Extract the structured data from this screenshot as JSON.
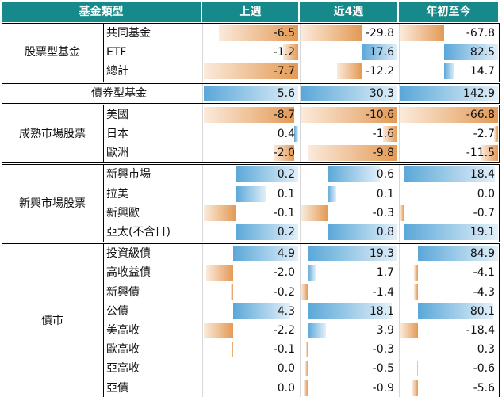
{
  "table": {
    "header": [
      "基金類型",
      "上週",
      "近4週",
      "年初至今"
    ],
    "groups": [
      {
        "label": "股票型基金",
        "rows": [
          {
            "label": "共同基金",
            "values": [
              "-6.5",
              "-29.8",
              "-67.8"
            ]
          },
          {
            "label": "ETF",
            "values": [
              "-1.2",
              "17.6",
              "82.5"
            ]
          },
          {
            "label": "總計",
            "values": [
              "-7.7",
              "-12.2",
              "14.7"
            ]
          }
        ]
      },
      {
        "label": "債券型基金",
        "rows": [
          {
            "values": [
              "5.6",
              "30.3",
              "142.9"
            ]
          }
        ]
      },
      {
        "label": "成熟市場股票",
        "rows": [
          {
            "label": "美國",
            "values": [
              "-8.7",
              "-10.6",
              "-66.8"
            ]
          },
          {
            "label": "日本",
            "values": [
              "0.4",
              "-1.6",
              "-2.7"
            ]
          },
          {
            "label": "歐洲",
            "values": [
              "-2.0",
              "-9.8",
              "-11.5"
            ]
          }
        ]
      },
      {
        "label": "新興市場股票",
        "rows": [
          {
            "label": "新興市場",
            "values": [
              "0.2",
              "0.6",
              "18.4"
            ]
          },
          {
            "label": "拉美",
            "values": [
              "0.1",
              "0.1",
              "0.0"
            ]
          },
          {
            "label": "新興歐",
            "values": [
              "-0.1",
              "-0.3",
              "-0.7"
            ]
          },
          {
            "label": "亞太(不含日)",
            "values": [
              "0.2",
              "0.8",
              "19.1"
            ]
          }
        ]
      },
      {
        "label": "債市",
        "rows": [
          {
            "label": "投資級債",
            "values": [
              "4.9",
              "19.3",
              "84.9"
            ]
          },
          {
            "label": "高收益債",
            "values": [
              "-2.0",
              "1.7",
              "-4.1"
            ]
          },
          {
            "label": "新興債",
            "values": [
              "-0.2",
              "-1.4",
              "-4.3"
            ]
          },
          {
            "label": "公債",
            "values": [
              "4.3",
              "18.1",
              "80.1"
            ]
          },
          {
            "label": "美高收",
            "values": [
              "-2.2",
              "3.9",
              "-18.4"
            ]
          },
          {
            "label": "歐高收",
            "values": [
              "-0.1",
              "-0.3",
              "0.3"
            ]
          },
          {
            "label": "亞高收",
            "values": [
              "0.0",
              "-0.5",
              "-0.6"
            ]
          },
          {
            "label": "亞債",
            "values": [
              "0.0",
              "-0.9",
              "-5.6"
            ]
          }
        ]
      }
    ]
  }
}
